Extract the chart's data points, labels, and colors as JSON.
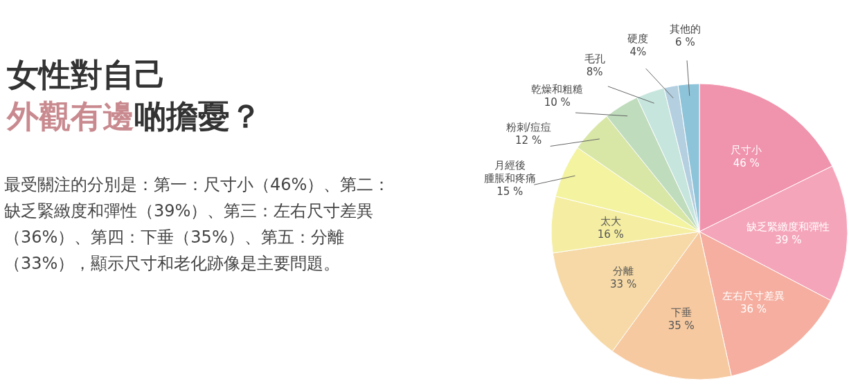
{
  "chart_data": {
    "type": "pie",
    "title": "女性對自己外觀有邊啲擔憂？",
    "subtitle": "最受關注的分別是：第一：尺寸小（46%）、第二：缺乏緊緻度和彈性（39%）、第三：左右尺寸差異（36%）、第四：下垂（35%）、第五：分離（33%），顯示尺寸和老化跡像是主要問題。",
    "categories": [
      "尺寸小",
      "缺乏緊緻度和彈性",
      "左右尺寸差異",
      "下垂",
      "分離",
      "太大",
      "月經後腫脹和疼痛",
      "粉刺/痘痘",
      "乾燥和粗糙",
      "毛孔",
      "硬度",
      "其他的"
    ],
    "values": [
      46,
      39,
      36,
      35,
      33,
      16,
      15,
      12,
      10,
      8,
      4,
      6
    ],
    "value_labels": [
      "46 %",
      "39 %",
      "36 %",
      "35 %",
      "33 %",
      "16 %",
      "15 %",
      "12 %",
      "10 %",
      "8%",
      "4%",
      "6 %"
    ],
    "colors": [
      "#f093ad",
      "#f5a5ba",
      "#f5ae9f",
      "#f6c9a0",
      "#f6d9a6",
      "#f5eea2",
      "#f3f3a0",
      "#d8e6a6",
      "#bfdcbc",
      "#c6e5dd",
      "#b4cfe0",
      "#8ec4da"
    ]
  }
}
